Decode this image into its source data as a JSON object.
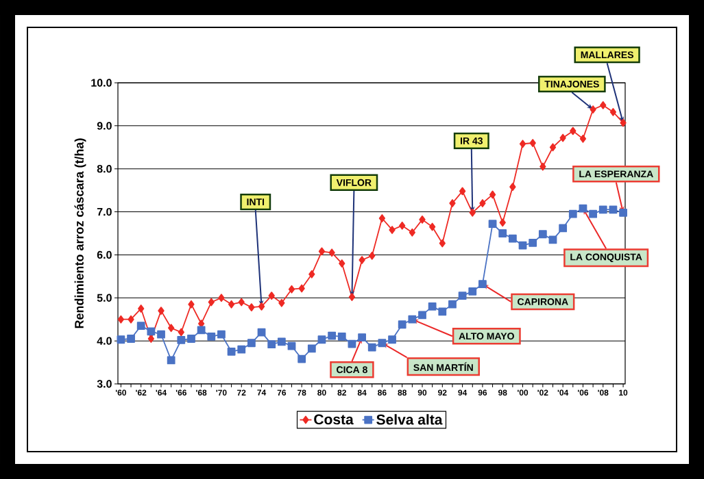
{
  "chart_data": {
    "type": "line",
    "ylabel": "Rendimiento arroz cáscara (t/ha)",
    "x": [
      1960,
      1961,
      1962,
      1963,
      1964,
      1965,
      1966,
      1967,
      1968,
      1969,
      1970,
      1971,
      1972,
      1973,
      1974,
      1975,
      1976,
      1977,
      1978,
      1979,
      1980,
      1981,
      1982,
      1983,
      1984,
      1985,
      1986,
      1987,
      1988,
      1989,
      1990,
      1991,
      1992,
      1993,
      1994,
      1995,
      1996,
      1997,
      1998,
      1999,
      2000,
      2001,
      2002,
      2003,
      2004,
      2005,
      2006,
      2007,
      2008,
      2009,
      2010
    ],
    "series": [
      {
        "name": "Costa",
        "color": "#ee2a24",
        "marker": "diamond",
        "line_style": "solid",
        "values": [
          4.5,
          4.5,
          4.75,
          4.05,
          4.7,
          4.3,
          4.2,
          4.85,
          4.4,
          4.9,
          5.0,
          4.85,
          4.9,
          4.78,
          4.8,
          5.05,
          4.88,
          5.2,
          5.22,
          5.55,
          6.08,
          6.05,
          5.8,
          5.02,
          5.88,
          5.98,
          6.85,
          6.58,
          6.68,
          6.52,
          6.82,
          6.65,
          6.27,
          7.2,
          7.48,
          6.98,
          7.2,
          7.4,
          6.75,
          7.58,
          8.58,
          8.6,
          8.05,
          8.5,
          8.72,
          8.88,
          8.7,
          9.38,
          9.48,
          9.32,
          9.07
        ]
      },
      {
        "name": "Selva alta",
        "color": "#4a72c4",
        "marker": "square",
        "line_style": "solid",
        "values": [
          4.03,
          4.05,
          4.35,
          4.22,
          4.15,
          3.55,
          4.02,
          4.05,
          4.25,
          4.1,
          4.15,
          3.75,
          3.8,
          3.95,
          4.2,
          3.92,
          3.98,
          3.88,
          3.58,
          3.82,
          4.03,
          4.12,
          4.1,
          3.93,
          4.08,
          3.85,
          3.95,
          4.03,
          4.38,
          4.5,
          4.6,
          4.8,
          4.68,
          4.85,
          5.05,
          5.15,
          5.32,
          6.72,
          6.5,
          6.38,
          6.22,
          6.28,
          6.48,
          6.35,
          6.62,
          6.95,
          7.08,
          6.95,
          7.05,
          7.05,
          6.98
        ]
      }
    ],
    "xlim": [
      1959.7,
      2010.2
    ],
    "xticks": [
      {
        "value": 1960,
        "label": "'60"
      },
      {
        "value": 1961,
        "label": null
      },
      {
        "value": 1962,
        "label": "'62"
      },
      {
        "value": 1963,
        "label": null
      },
      {
        "value": 1964,
        "label": "'64"
      },
      {
        "value": 1965,
        "label": null
      },
      {
        "value": 1966,
        "label": "'66"
      },
      {
        "value": 1967,
        "label": null
      },
      {
        "value": 1968,
        "label": "'68"
      },
      {
        "value": 1969,
        "label": null
      },
      {
        "value": 1970,
        "label": "'70"
      },
      {
        "value": 1971,
        "label": null
      },
      {
        "value": 1972,
        "label": "72"
      },
      {
        "value": 1973,
        "label": null
      },
      {
        "value": 1974,
        "label": "74"
      },
      {
        "value": 1975,
        "label": null
      },
      {
        "value": 1976,
        "label": "76"
      },
      {
        "value": 1977,
        "label": null
      },
      {
        "value": 1978,
        "label": "78"
      },
      {
        "value": 1979,
        "label": null
      },
      {
        "value": 1980,
        "label": "80"
      },
      {
        "value": 1981,
        "label": null
      },
      {
        "value": 1982,
        "label": "82"
      },
      {
        "value": 1983,
        "label": null
      },
      {
        "value": 1984,
        "label": "84"
      },
      {
        "value": 1985,
        "label": null
      },
      {
        "value": 1986,
        "label": "86"
      },
      {
        "value": 1987,
        "label": null
      },
      {
        "value": 1988,
        "label": "88"
      },
      {
        "value": 1989,
        "label": null
      },
      {
        "value": 1990,
        "label": "90"
      },
      {
        "value": 1991,
        "label": null
      },
      {
        "value": 1992,
        "label": "92"
      },
      {
        "value": 1993,
        "label": null
      },
      {
        "value": 1994,
        "label": "94"
      },
      {
        "value": 1995,
        "label": null
      },
      {
        "value": 1996,
        "label": "96"
      },
      {
        "value": 1997,
        "label": null
      },
      {
        "value": 1998,
        "label": "98"
      },
      {
        "value": 1999,
        "label": null
      },
      {
        "value": 2000,
        "label": "'00"
      },
      {
        "value": 2001,
        "label": null
      },
      {
        "value": 2002,
        "label": "'02"
      },
      {
        "value": 2003,
        "label": null
      },
      {
        "value": 2004,
        "label": "'04"
      },
      {
        "value": 2005,
        "label": null
      },
      {
        "value": 2006,
        "label": "'06"
      },
      {
        "value": 2007,
        "label": null
      },
      {
        "value": 2008,
        "label": "'08"
      },
      {
        "value": 2009,
        "label": null
      },
      {
        "value": 2010,
        "label": "10"
      }
    ],
    "ylim": [
      3,
      10
    ],
    "yticks": [
      {
        "value": 3,
        "label": "3.0"
      },
      {
        "value": 4,
        "label": "4.0"
      },
      {
        "value": 5,
        "label": "5.0"
      },
      {
        "value": 6,
        "label": "6.0"
      },
      {
        "value": 7,
        "label": "7.0"
      },
      {
        "value": 8,
        "label": "8.0"
      },
      {
        "value": 9,
        "label": "9.0"
      },
      {
        "value": 10,
        "label": "10.0"
      }
    ],
    "grid": "y",
    "legend": "bottom",
    "annotations": [
      {
        "text": "INTI",
        "x": 1974,
        "y": 4.8
      },
      {
        "text": "VIFLOR",
        "x": 1983,
        "y": 5.02
      },
      {
        "text": "IR 43",
        "x": 1995,
        "y": 6.98
      },
      {
        "text": "TINAJONES",
        "x": 2007,
        "y": 9.38
      },
      {
        "text": "MALLARES",
        "x": 2010,
        "y": 9.07
      },
      {
        "text": "LA ESPERANZA",
        "x": 2010,
        "y": 6.98
      },
      {
        "text": "LA CONQUISTA",
        "x": 2006,
        "y": 7.08
      },
      {
        "text": "CAPIRONA",
        "x": 1996,
        "y": 5.32
      },
      {
        "text": "ALTO MAYO",
        "x": 1989,
        "y": 4.5
      },
      {
        "text": "SAN MARTÍN",
        "x": 1986,
        "y": 3.95
      },
      {
        "text": "CICA 8",
        "x": 1984,
        "y": 4.08
      }
    ]
  }
}
